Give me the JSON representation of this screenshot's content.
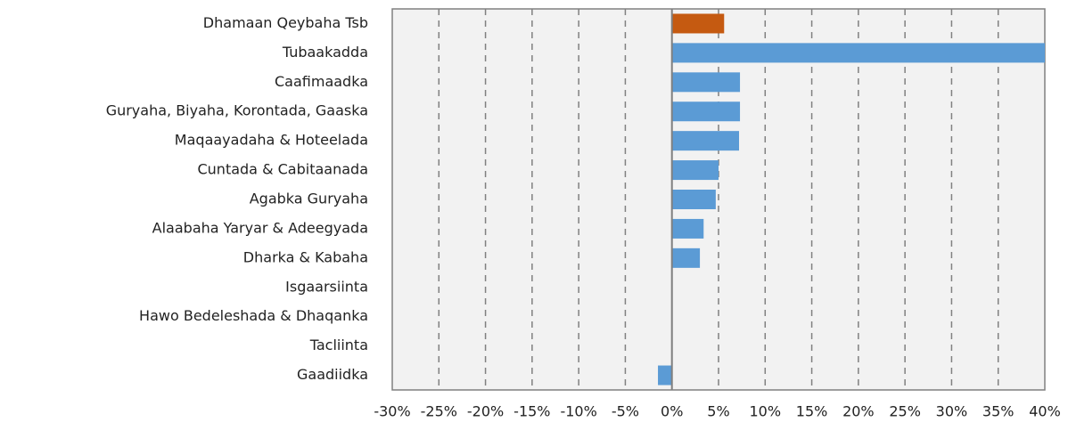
{
  "chart_data": {
    "type": "barh",
    "categories": [
      "Dhamaan Qeybaha  Tsb",
      "Tubaakadda",
      "Caafimaadka",
      "Guryaha, Biyaha, Korontada, Gaaska",
      "Maqaayadaha & Hoteelada",
      "Cuntada & Cabitaanada",
      "Agabka Guryaha",
      "Alaabaha Yaryar & Adeegyada",
      "Dharka & Kabaha",
      "Isgaarsiinta",
      "Hawo Bedeleshada & Dhaqanka",
      "Tacliinta",
      "Gaadiidka"
    ],
    "values": [
      5.6,
      40,
      7.3,
      7.3,
      7.2,
      5.0,
      4.7,
      3.4,
      3.0,
      0,
      0,
      0,
      -1.5
    ],
    "colors": [
      "#c55a11",
      "#5b9bd5",
      "#5b9bd5",
      "#5b9bd5",
      "#5b9bd5",
      "#5b9bd5",
      "#5b9bd5",
      "#5b9bd5",
      "#5b9bd5",
      "#5b9bd5",
      "#5b9bd5",
      "#5b9bd5",
      "#5b9bd5"
    ],
    "xlim": [
      -30,
      40
    ],
    "xticks": [
      {
        "value": -30,
        "label": "-30%"
      },
      {
        "value": -25,
        "label": "-25%"
      },
      {
        "value": -20,
        "label": "-20%"
      },
      {
        "value": -15,
        "label": "-15%"
      },
      {
        "value": -10,
        "label": "-10%"
      },
      {
        "value": -5,
        "label": "-5%"
      },
      {
        "value": 0,
        "label": "0%"
      },
      {
        "value": 5,
        "label": "5%"
      },
      {
        "value": 10,
        "label": "10%"
      },
      {
        "value": 15,
        "label": "15%"
      },
      {
        "value": 20,
        "label": "20%"
      },
      {
        "value": 25,
        "label": "25%"
      },
      {
        "value": 30,
        "label": "30%"
      },
      {
        "value": 35,
        "label": "35%"
      },
      {
        "value": 40,
        "label": "40%"
      }
    ],
    "grid": true
  }
}
